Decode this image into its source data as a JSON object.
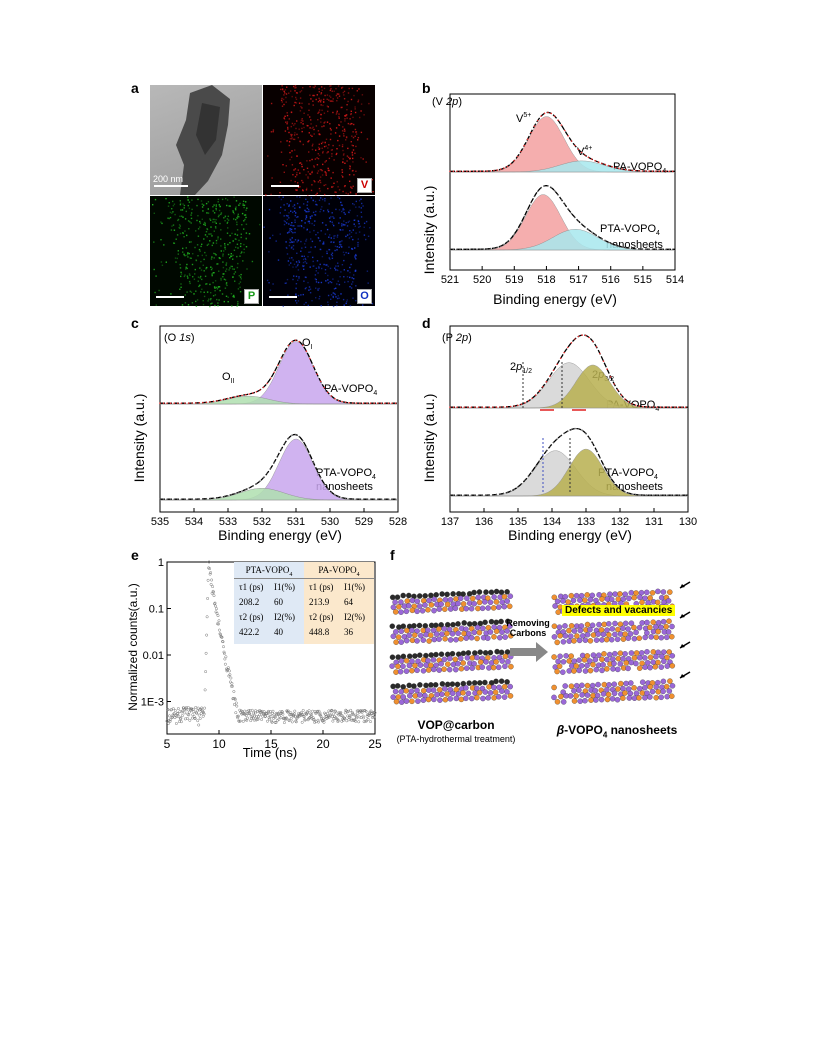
{
  "panel_labels": {
    "a": "a",
    "b": "b",
    "c": "c",
    "d": "d",
    "e": "e",
    "f": "f"
  },
  "panel_a": {
    "scale_text": "200 nm",
    "elements": [
      {
        "symbol": "V",
        "color": "#cc0000"
      },
      {
        "symbol": "P",
        "color": "#1a9a1a"
      },
      {
        "symbol": "O",
        "color": "#1030c0"
      }
    ]
  },
  "xps": {
    "ylabel": "Intensity (a.u.)",
    "xlabel": "Binding energy (eV)",
    "sample_top": "PA-VOPO",
    "sample_bottom_line1": "PTA-VOPO",
    "sample_bottom_line2": "nanosheets",
    "sub4": "4"
  },
  "chart_data": [
    {
      "panel": "b",
      "type": "line",
      "title": "(V 2p)",
      "xlabel": "Binding energy (eV)",
      "ylabel": "Intensity (a.u.)",
      "xlim": [
        521,
        514
      ],
      "xticks": [
        521,
        520,
        519,
        518,
        517,
        516,
        515,
        514
      ],
      "annotations": [
        {
          "text": "V5+",
          "x": 518.5
        },
        {
          "text": "V4+",
          "x": 516.8
        }
      ],
      "series": [
        {
          "name": "PA-VOPO4",
          "peaks": [
            {
              "center": 518.0,
              "height": 0.75,
              "width": 0.55,
              "fill": "#f4a0a0"
            },
            {
              "center": 516.9,
              "height": 0.15,
              "width": 0.7,
              "fill": "#a8e8ee"
            }
          ]
        },
        {
          "name": "PTA-VOPO4 nanosheets",
          "peaks": [
            {
              "center": 518.1,
              "height": 0.75,
              "width": 0.55,
              "fill": "#f4a0a0"
            },
            {
              "center": 517.1,
              "height": 0.28,
              "width": 0.7,
              "fill": "#a8e8ee"
            }
          ]
        }
      ]
    },
    {
      "panel": "c",
      "type": "line",
      "title": "(O 1s)",
      "xlabel": "Binding energy (eV)",
      "ylabel": "Intensity (a.u.)",
      "xlim": [
        535,
        528
      ],
      "xticks": [
        535,
        534,
        533,
        532,
        531,
        530,
        529,
        528
      ],
      "annotations": [
        {
          "text": "OII",
          "x": 532.6
        },
        {
          "text": "OI",
          "x": 530.8
        }
      ],
      "series": [
        {
          "name": "PA-VOPO4",
          "peaks": [
            {
              "center": 531.0,
              "height": 0.8,
              "width": 0.5,
              "fill": "#c8a6ee"
            },
            {
              "center": 532.4,
              "height": 0.1,
              "width": 0.6,
              "fill": "#b0e0b0"
            }
          ]
        },
        {
          "name": "PTA-VOPO4 nanosheets",
          "peaks": [
            {
              "center": 531.0,
              "height": 0.78,
              "width": 0.5,
              "fill": "#c8a6ee"
            },
            {
              "center": 532.0,
              "height": 0.15,
              "width": 0.65,
              "fill": "#b0e0b0"
            }
          ]
        }
      ]
    },
    {
      "panel": "d",
      "type": "line",
      "title": "(P 2p)",
      "xlabel": "Binding energy (eV)",
      "ylabel": "Intensity (a.u.)",
      "xlim": [
        137,
        130
      ],
      "xticks": [
        137,
        136,
        135,
        134,
        133,
        132,
        131,
        130
      ],
      "annotations": [
        {
          "text": "2p1/2",
          "x": 133.9
        },
        {
          "text": "2p3/2",
          "x": 132.5
        }
      ],
      "series": [
        {
          "name": "PA-VOPO4",
          "peaks": [
            {
              "center": 133.5,
              "height": 0.58,
              "width": 0.6,
              "fill": "#d4d4d4"
            },
            {
              "center": 132.8,
              "height": 0.55,
              "width": 0.5,
              "fill": "#b8b050"
            }
          ]
        },
        {
          "name": "PTA-VOPO4 nanosheets",
          "peaks": [
            {
              "center": 133.9,
              "height": 0.58,
              "width": 0.6,
              "fill": "#d4d4d4"
            },
            {
              "center": 133.0,
              "height": 0.6,
              "width": 0.5,
              "fill": "#b8b050"
            }
          ]
        }
      ]
    },
    {
      "panel": "e",
      "type": "scatter",
      "xlabel": "Time (ns)",
      "ylabel": "Normalized counts(a.u.)",
      "xlim": [
        5,
        25
      ],
      "xticks": [
        5,
        10,
        15,
        20,
        25
      ],
      "ylim": [
        0.0002,
        1
      ],
      "yscale": "log",
      "ytick_labels": [
        "1",
        "0.1",
        "0.01",
        "1E-3"
      ],
      "yticks": [
        1,
        0.1,
        0.01,
        0.001
      ],
      "decay": {
        "peak_time": 9.0,
        "tau1_ps": 208.2,
        "A1": 0.6,
        "tau2_ps": 422.2,
        "A2": 0.4,
        "baseline": 0.0005
      }
    }
  ],
  "table_e": {
    "left_header": "PTA-VOPO",
    "right_header": "PA-VOPO",
    "rows": [
      [
        "τ1 (ps)",
        "I1(%)",
        "τ1 (ps)",
        "I1(%)"
      ],
      [
        "208.2",
        "60",
        "213.9",
        "64"
      ],
      [
        "τ2 (ps)",
        "I2(%)",
        "τ2 (ps)",
        "I2(%)"
      ],
      [
        "422.2",
        "40",
        "448.8",
        "36"
      ]
    ]
  },
  "panel_f": {
    "arrow_text_1": "Removing",
    "arrow_text_2": "Carbons",
    "defects": "Defects and vacancies",
    "left_caption": "VOP@carbon",
    "left_sub": "(PTA-hydrothermal treatment)",
    "right_caption_prefix": "β",
    "right_caption": "-VOPO",
    "right_caption_suffix": " nanosheets"
  },
  "colors": {
    "envelope_dash": "#000000",
    "raw_red": "#e83030",
    "atom_purple": "#9a68d8",
    "atom_orange": "#f09030",
    "atom_black": "#2a2a2a",
    "defect_yellow": "#ffff00"
  }
}
